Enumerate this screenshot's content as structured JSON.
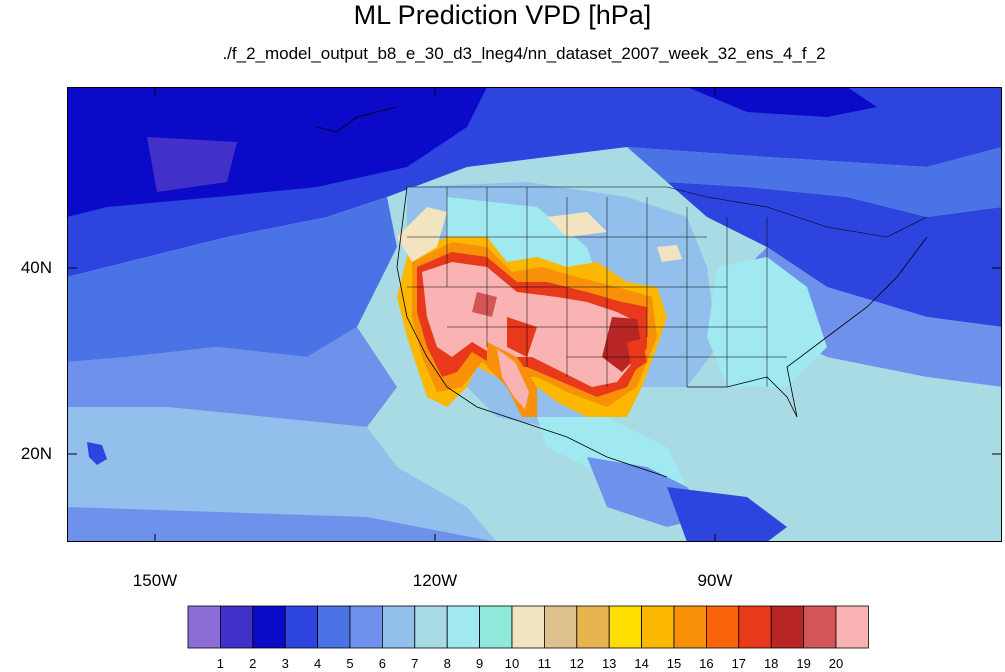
{
  "title": "ML Prediction VPD [hPa]",
  "subtitle": "./f_2_model_output_b8_e_30_d3_lneg4/nn_dataset_2007_week_32_ens_4_f_2",
  "lat_labels": [
    "40N",
    "20N"
  ],
  "lon_labels": [
    "150W",
    "120W",
    "90W"
  ],
  "colorbar": {
    "labels": [
      "1",
      "2",
      "3",
      "4",
      "5",
      "6",
      "7",
      "8",
      "9",
      "10",
      "11",
      "12",
      "13",
      "14",
      "15",
      "16",
      "17",
      "18",
      "19",
      "20"
    ],
    "colors": [
      "#8d6ed8",
      "#4231c8",
      "#0a0ac8",
      "#2d45de",
      "#4a73e6",
      "#6e91ec",
      "#92bfeb",
      "#a9dbe4",
      "#a0e9f0",
      "#90e8db",
      "#f2e4c0",
      "#dfc18e",
      "#e8b450",
      "#fede00",
      "#fcb800",
      "#f8900a",
      "#f9640a",
      "#e8391a",
      "#b82525",
      "#d35656",
      "#f9b3b3"
    ]
  }
}
